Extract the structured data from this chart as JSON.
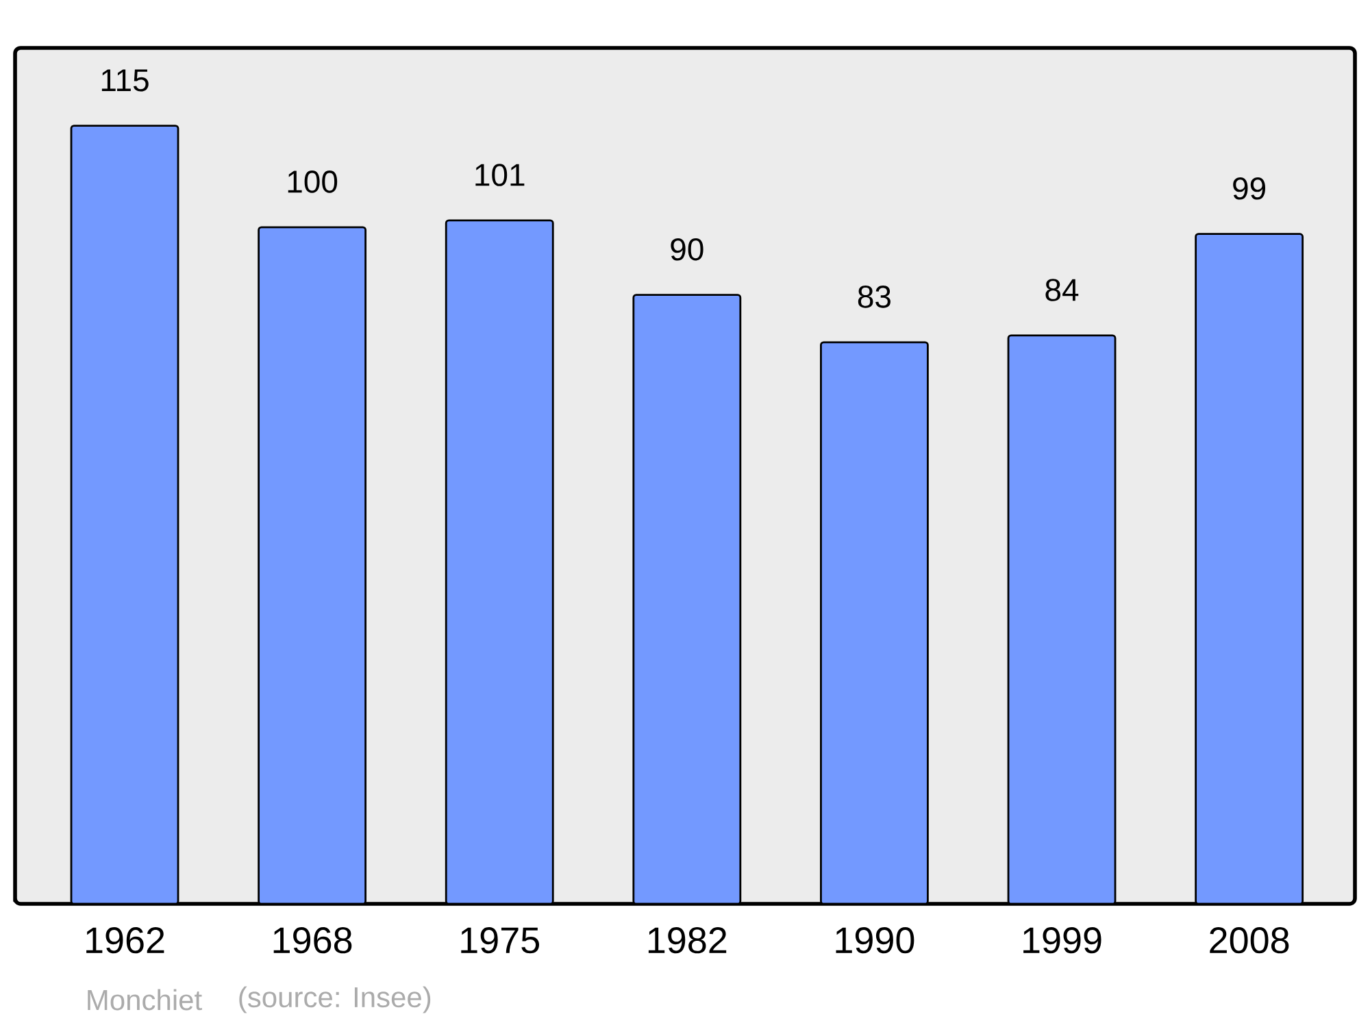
{
  "chart_data": {
    "type": "bar",
    "categories": [
      "1962",
      "1968",
      "1975",
      "1982",
      "1990",
      "1999",
      "2008"
    ],
    "values": [
      115,
      100,
      101,
      90,
      83,
      84,
      99
    ],
    "color": "#7399ff",
    "ylim": [
      0,
      126.5
    ],
    "data_labels": true,
    "annotations": [
      "Monchiet",
      "(source: Insee)"
    ]
  }
}
